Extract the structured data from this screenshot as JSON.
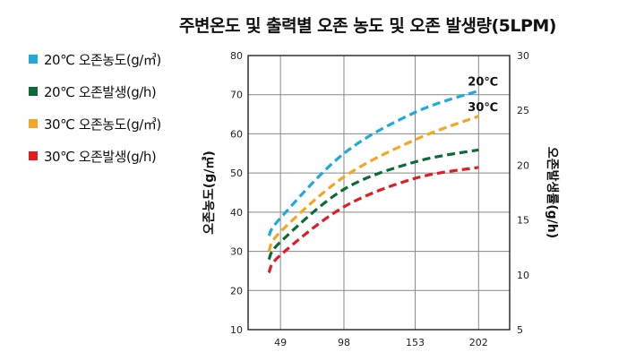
{
  "chart_data": {
    "type": "line",
    "title": "주변온도 및 출력별 오존 농도 및 오존 발생량(5LPM)",
    "xlabel": "",
    "ylabel": "오존농도(g/㎥)",
    "y2label": "오존발생률(g/h)",
    "x_ticks": [
      "49",
      "98",
      "153",
      "202"
    ],
    "x": [
      40,
      49,
      98,
      153,
      202
    ],
    "xlim": [
      24,
      226
    ],
    "ylim": [
      10,
      80
    ],
    "y_ticks": [
      10,
      20,
      30,
      40,
      50,
      60,
      70,
      80
    ],
    "y2lim": [
      5,
      30
    ],
    "y2_ticks": [
      5,
      10,
      15,
      20,
      25,
      30
    ],
    "grid": true,
    "legend_position": "left",
    "series": [
      {
        "name": "20℃ 오존농도(g/㎥)",
        "axis": "left",
        "color": "#1ea9e1",
        "values": [
          34,
          38.5,
          55,
          65.5,
          71
        ]
      },
      {
        "name": "20℃ 오존발생(g/h)",
        "axis": "right",
        "color": "#0b6b37",
        "values": [
          11.4,
          13,
          17.8,
          20.3,
          21.4
        ]
      },
      {
        "name": "30℃ 오존농도(g/㎥)",
        "axis": "left",
        "color": "#f5a623",
        "values": [
          30,
          35,
          49,
          58.5,
          64.5
        ]
      },
      {
        "name": "30℃ 오존발생(g/h)",
        "axis": "right",
        "color": "#e31b23",
        "values": [
          10.2,
          11.8,
          16.2,
          18.8,
          19.8
        ]
      }
    ],
    "annotations": [
      {
        "text": "20℃",
        "x": 202,
        "y": 71
      },
      {
        "text": "30℃",
        "x": 202,
        "y": 64.5
      }
    ]
  }
}
